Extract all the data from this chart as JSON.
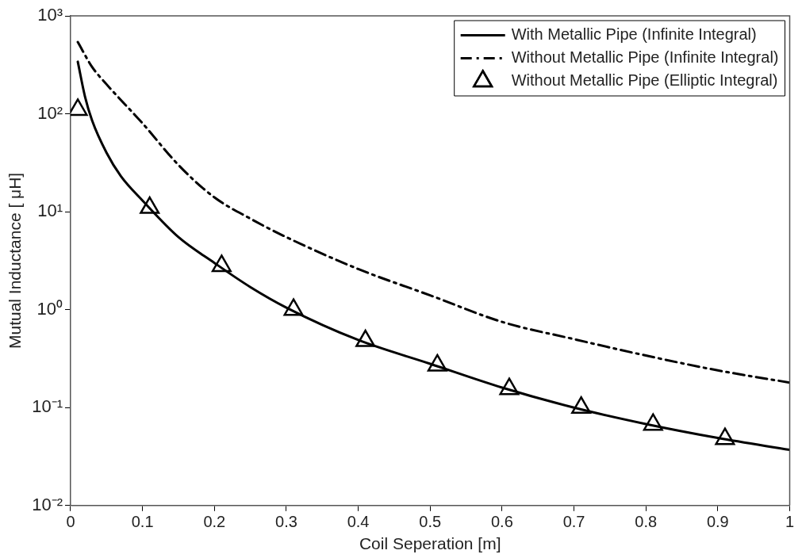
{
  "chart_data": {
    "type": "line",
    "xlabel": "Coil Seperation [m]",
    "ylabel": "Mutual Inductance [ μH]",
    "log": "y",
    "grid": false,
    "legend": "top right",
    "xlim": [
      0,
      1
    ],
    "xticks": [
      0,
      0.1,
      0.2,
      0.3,
      0.4,
      0.5,
      0.6,
      0.7,
      0.8,
      0.9,
      1
    ],
    "ylim": [
      0.01,
      1000
    ],
    "yticks": [
      {
        "value": 0.01,
        "label": "10⁻²"
      },
      {
        "value": 0.1,
        "label": "10⁻¹"
      },
      {
        "value": 1,
        "label": "10⁰"
      },
      {
        "value": 10,
        "label": "10¹"
      },
      {
        "value": 100,
        "label": "10²"
      },
      {
        "value": 1000,
        "label": "10³"
      }
    ],
    "series": [
      {
        "name": "With Metallic Pipe (Infinite Integral)",
        "color": "#000000",
        "marker": "none",
        "line_style": "solid",
        "x": [
          0.01,
          0.02,
          0.03,
          0.05,
          0.07,
          0.1,
          0.15,
          0.2,
          0.25,
          0.3,
          0.4,
          0.5,
          0.6,
          0.7,
          0.8,
          0.9,
          1.0
        ],
        "values": [
          340,
          150,
          85,
          40,
          23,
          13,
          5.5,
          3.0,
          1.7,
          1.05,
          0.49,
          0.28,
          0.16,
          0.1,
          0.068,
          0.049,
          0.037
        ]
      },
      {
        "name": "Without Metallic Pipe (Infinite Integral)",
        "color": "#000000",
        "marker": "none",
        "line_style": "dashed",
        "x": [
          0.01,
          0.03,
          0.05,
          0.1,
          0.15,
          0.2,
          0.25,
          0.3,
          0.4,
          0.5,
          0.6,
          0.7,
          0.8,
          0.9,
          1.0
        ],
        "values": [
          540,
          300,
          200,
          80,
          30,
          14,
          8.5,
          5.5,
          2.6,
          1.4,
          0.75,
          0.5,
          0.34,
          0.24,
          0.18
        ]
      },
      {
        "name": "Without Metallic Pipe (Elliptic Integral)",
        "type": "scatter",
        "color": "#000000",
        "marker": "triangle",
        "x": [
          0.01,
          0.11,
          0.21,
          0.31,
          0.41,
          0.51,
          0.61,
          0.71,
          0.81,
          0.91
        ],
        "values": [
          110,
          11,
          2.8,
          1.0,
          0.48,
          0.27,
          0.155,
          0.1,
          0.067,
          0.048
        ]
      }
    ]
  }
}
